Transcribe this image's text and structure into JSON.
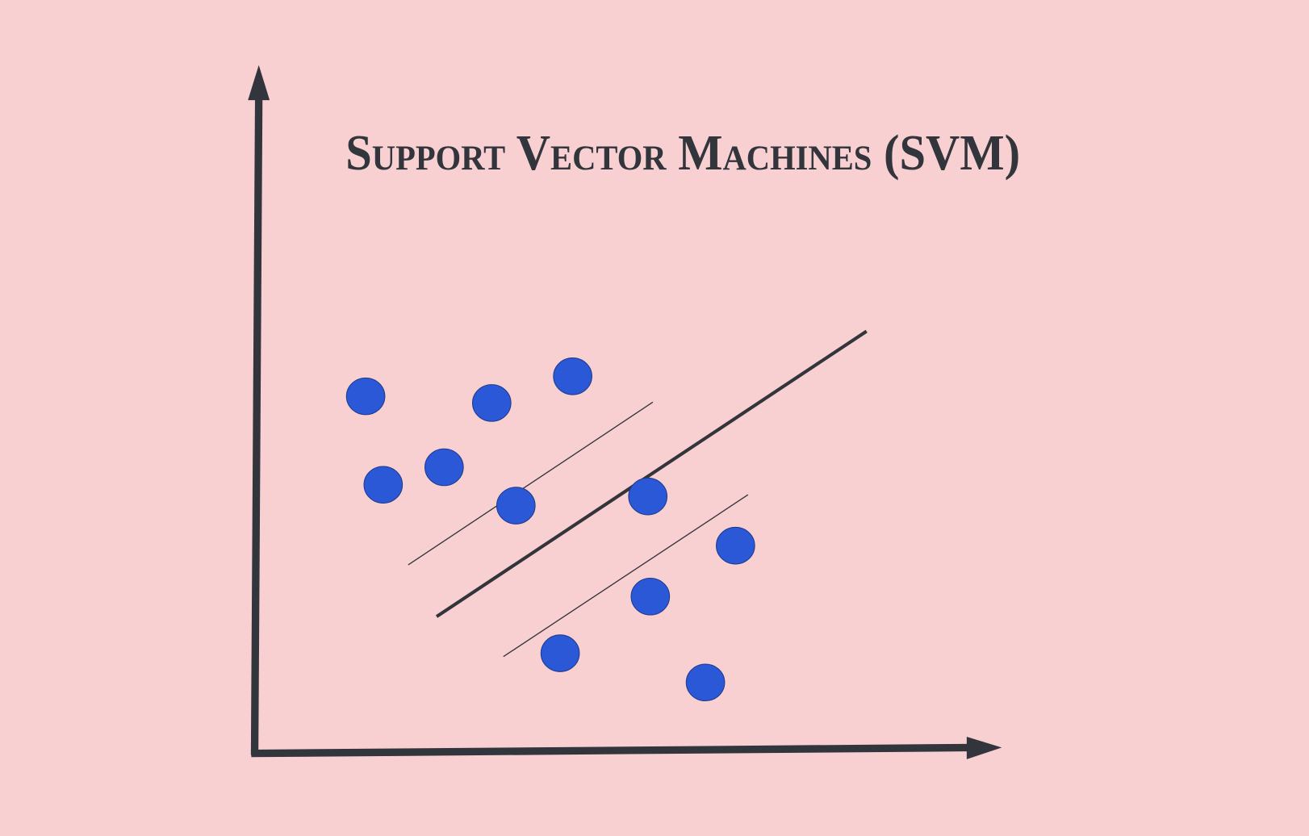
{
  "title": "Support Vector Machines (SVM)",
  "colors": {
    "background": "#f8d0d2",
    "axis": "#32353b",
    "point_fill": "#2b58d6",
    "point_stroke": "#1f3a8a",
    "line": "#32353b"
  }
}
